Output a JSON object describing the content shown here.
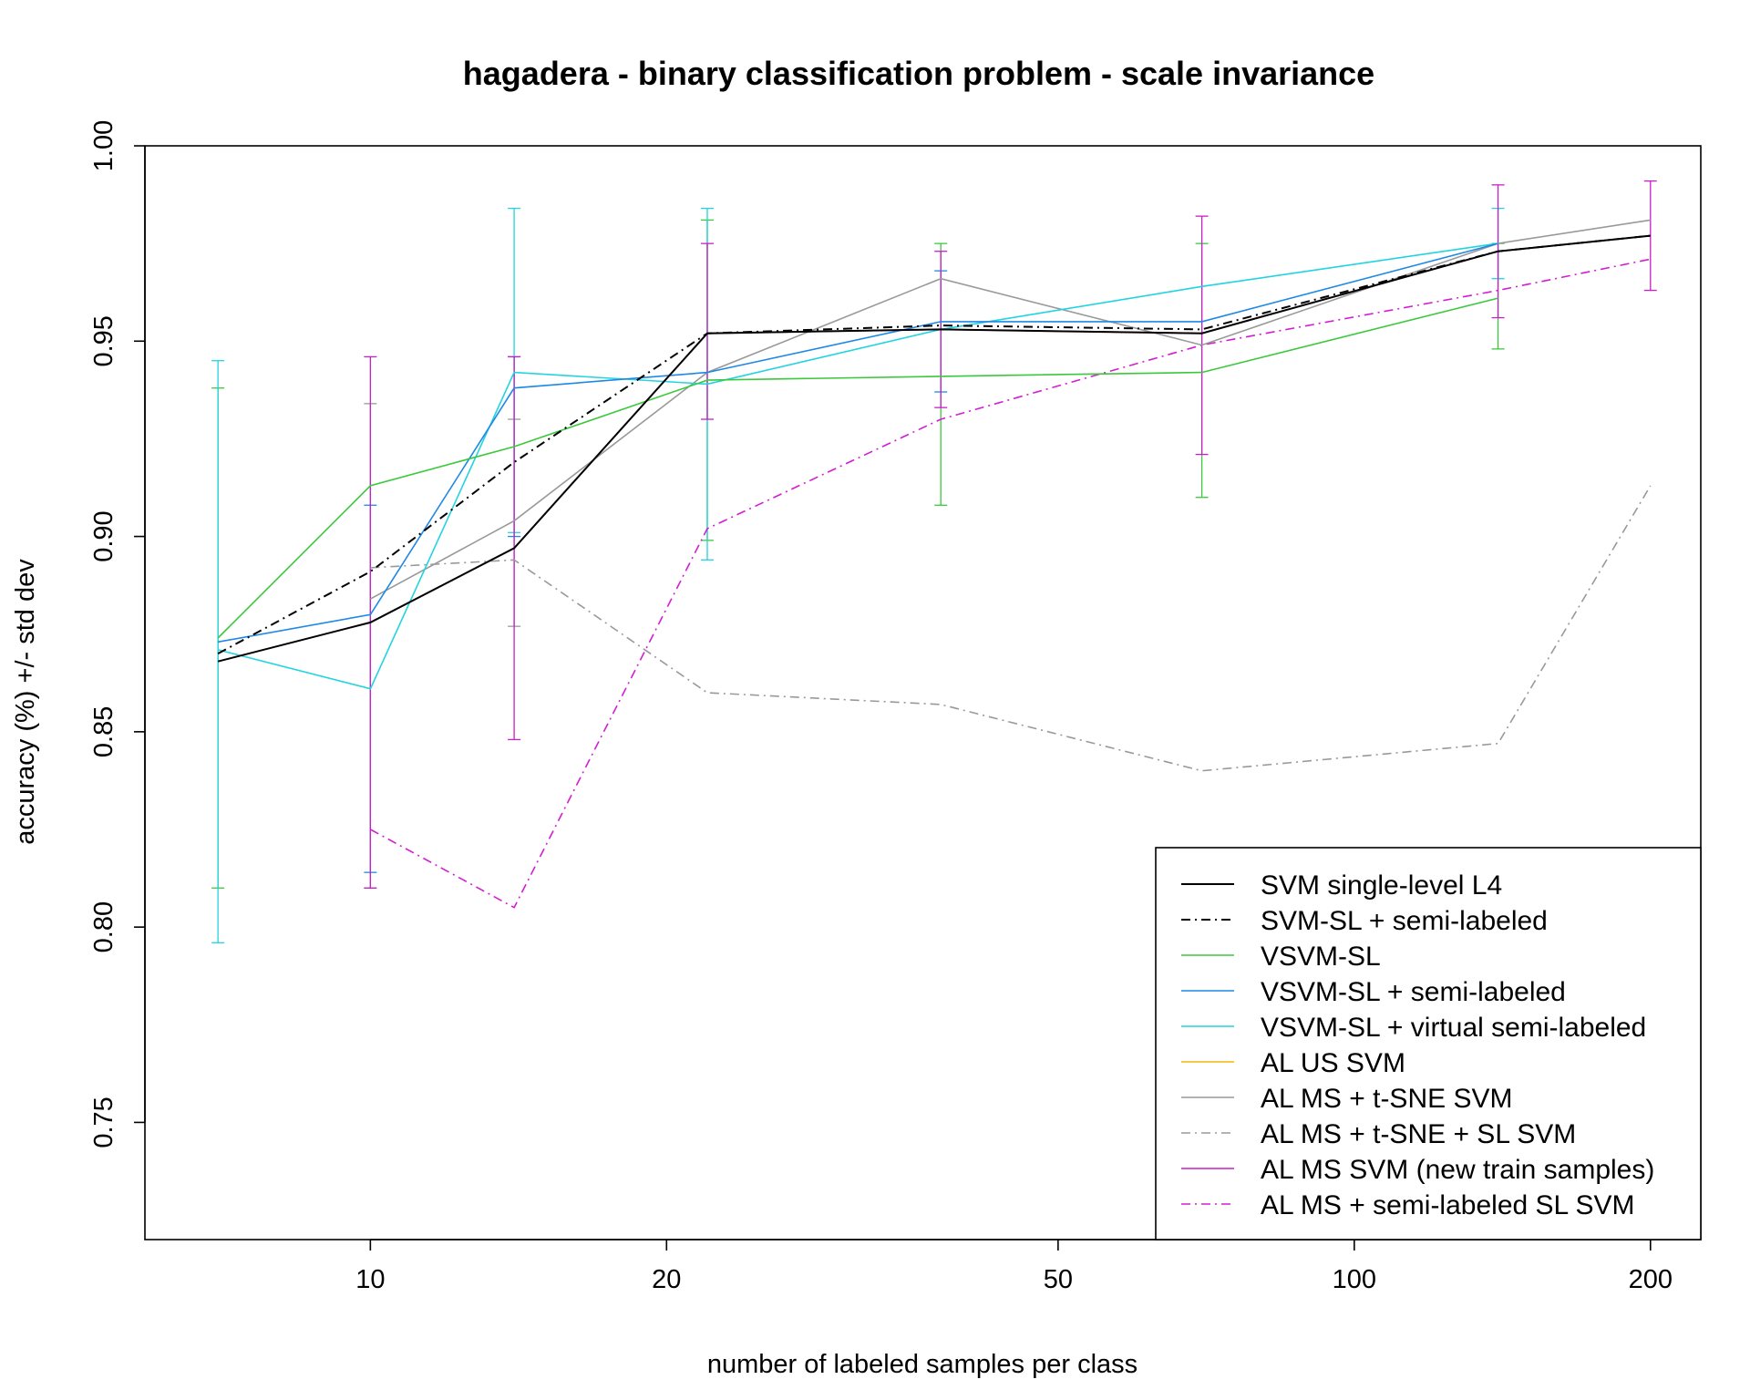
{
  "chart_data": {
    "type": "line",
    "title": "hagadera - binary classification problem - scale invariance",
    "xlabel": "number of labeled samples per class",
    "ylabel": "accuracy (%) +/- std dev",
    "xscale": "log",
    "xlim": [
      5.9,
      225
    ],
    "ylim": [
      0.72,
      1.0
    ],
    "xticks": [
      10,
      20,
      50,
      100,
      200
    ],
    "xtick_labels": [
      "10",
      "20",
      "50",
      "100",
      "200"
    ],
    "yticks": [
      0.75,
      0.8,
      0.85,
      0.9,
      0.95,
      1.0
    ],
    "ytick_labels": [
      "0.75",
      "0.80",
      "0.85",
      "0.90",
      "0.95",
      "1.00"
    ],
    "x": [
      7,
      10,
      14,
      22,
      38,
      70,
      140,
      200
    ],
    "legend_position": "bottom-right",
    "grid": false,
    "series": [
      {
        "name": "SVM single-level L4",
        "color": "#000000",
        "dash": "",
        "width": 2,
        "values": [
          0.868,
          0.878,
          0.897,
          0.952,
          0.953,
          0.952,
          0.973,
          0.977
        ]
      },
      {
        "name": "SVM-SL + semi-labeled",
        "color": "#000000",
        "dash": "10 5 2 5",
        "width": 2,
        "values": [
          0.87,
          0.891,
          0.919,
          0.952,
          0.954,
          0.953,
          0.973,
          0.977
        ]
      },
      {
        "name": "VSVM-SL",
        "color": "#3cc83c",
        "dash": "",
        "width": 1.6,
        "values": [
          0.874,
          0.913,
          0.923,
          0.94,
          0.941,
          0.942,
          0.961,
          null
        ]
      },
      {
        "name": "VSVM-SL + semi-labeled",
        "color": "#1e88e5",
        "dash": "",
        "width": 1.6,
        "values": [
          0.873,
          0.88,
          0.938,
          0.942,
          0.955,
          0.955,
          0.975,
          null
        ]
      },
      {
        "name": "VSVM-SL + virtual semi-labeled",
        "color": "#22d3e0",
        "dash": "",
        "width": 1.6,
        "values": [
          0.871,
          0.861,
          0.942,
          0.939,
          0.953,
          0.964,
          0.975,
          null
        ]
      },
      {
        "name": "AL US SVM",
        "color": "#f5b800",
        "dash": "",
        "width": 1.6,
        "values": [
          null,
          null,
          null,
          null,
          null,
          null,
          null,
          null
        ]
      },
      {
        "name": "AL MS + t-SNE SVM",
        "color": "#999999",
        "dash": "",
        "width": 1.6,
        "values": [
          null,
          0.884,
          0.904,
          0.942,
          0.966,
          0.949,
          0.975,
          0.981
        ]
      },
      {
        "name": "AL MS + t-SNE + SL SVM",
        "color": "#999999",
        "dash": "10 5 2 5",
        "width": 1.6,
        "values": [
          null,
          0.892,
          0.894,
          0.86,
          0.857,
          0.84,
          0.847,
          0.913
        ]
      },
      {
        "name": "AL MS SVM (new train samples)",
        "color": "#c81ec8",
        "dash": "",
        "width": 1.6,
        "values": [
          null,
          0.878,
          0.897,
          0.952,
          0.953,
          0.952,
          0.973,
          0.977
        ]
      },
      {
        "name": "AL MS + semi-labeled SL SVM",
        "color": "#d21ed2",
        "dash": "10 5 2 5",
        "width": 1.6,
        "values": [
          null,
          0.825,
          0.805,
          0.902,
          0.93,
          0.949,
          0.963,
          0.971
        ]
      }
    ],
    "error_bars": [
      {
        "series": "VSVM-SL",
        "color": "#3cc83c",
        "points": [
          [
            7,
            0.81,
            0.938
          ],
          [
            22,
            0.899,
            0.981
          ],
          [
            38,
            0.908,
            0.975
          ],
          [
            70,
            0.91,
            0.975
          ],
          [
            140,
            0.948,
            0.975
          ]
        ]
      },
      {
        "series": "VSVM-SL + semi-labeled",
        "color": "#1e88e5",
        "points": [
          [
            10,
            0.814,
            0.908
          ],
          [
            14,
            0.9,
            0.946
          ],
          [
            38,
            0.937,
            0.968
          ]
        ]
      },
      {
        "series": "VSVM-SL + virtual semi-labeled",
        "color": "#22d3e0",
        "points": [
          [
            7,
            0.796,
            0.945
          ],
          [
            14,
            0.901,
            0.984
          ],
          [
            22,
            0.894,
            0.984
          ],
          [
            140,
            0.966,
            0.984
          ]
        ]
      },
      {
        "series": "AL MS + t-SNE SVM",
        "color": "#999999",
        "points": [
          [
            10,
            0.81,
            0.934
          ],
          [
            14,
            0.877,
            0.93
          ]
        ]
      },
      {
        "series": "AL MS SVM (new train samples)",
        "color": "#c81ec8",
        "points": [
          [
            10,
            0.81,
            0.946
          ],
          [
            14,
            0.848,
            0.946
          ],
          [
            22,
            0.93,
            0.975
          ],
          [
            38,
            0.933,
            0.973
          ],
          [
            70,
            0.921,
            0.982
          ],
          [
            140,
            0.956,
            0.99
          ],
          [
            200,
            0.963,
            0.991
          ]
        ]
      }
    ]
  }
}
